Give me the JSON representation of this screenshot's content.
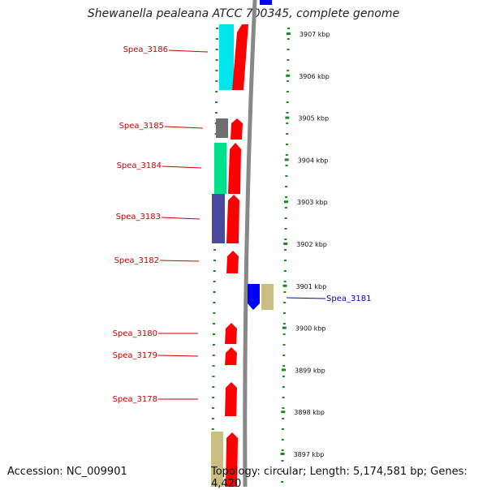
{
  "title": "Shewanella pealeana ATCC 700345, complete genome",
  "accession": "Accession: NC_009901",
  "topology": "Topology: circular; Length: 5,174,581 bp; Genes: 4,420",
  "colors": {
    "forward_label": "#cc0000",
    "reverse_label": "#0000cc",
    "red_gene": "#ff0000",
    "blue_gene": "#0000ff",
    "cyan": "#00e5ee",
    "gray": "#6e6e6e",
    "green": "#00e08a",
    "navy": "#4a4a9e",
    "khaki": "#c8bd82",
    "backbone": "#8a8a8a",
    "tick": "#1a8a1a"
  },
  "scale": {
    "unit": "kbp",
    "markers": [
      {
        "label": "3907 kbp"
      },
      {
        "label": "3906 kbp"
      },
      {
        "label": "3905 kbp"
      },
      {
        "label": "3904 kbp"
      },
      {
        "label": "3903 kbp"
      },
      {
        "label": "3902 kbp"
      },
      {
        "label": "3901 kbp"
      },
      {
        "label": "3900 kbp"
      },
      {
        "label": "3899 kbp"
      },
      {
        "label": "3898 kbp"
      },
      {
        "label": "3897 kbp"
      }
    ]
  },
  "gene_labels": [
    {
      "name": "Spea_3186",
      "strand": "forward"
    },
    {
      "name": "Spea_3185",
      "strand": "forward"
    },
    {
      "name": "Spea_3184",
      "strand": "forward"
    },
    {
      "name": "Spea_3183",
      "strand": "forward"
    },
    {
      "name": "Spea_3182",
      "strand": "forward"
    },
    {
      "name": "Spea_3181",
      "strand": "reverse"
    },
    {
      "name": "Spea_3180",
      "strand": "forward"
    },
    {
      "name": "Spea_3179",
      "strand": "forward"
    },
    {
      "name": "Spea_3178",
      "strand": "forward"
    }
  ]
}
